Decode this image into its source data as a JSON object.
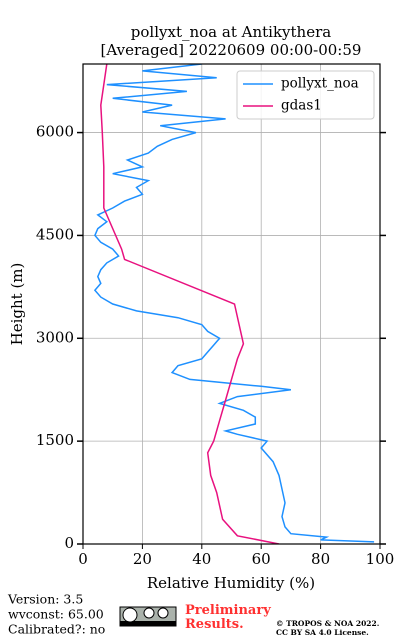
{
  "chart_data": {
    "type": "line",
    "title": "pollyxt_noa at Antikythera",
    "subtitle": "[Averaged] 20220609 00:00-00:59",
    "xlabel": "Relative Humidity (%)",
    "ylabel": "Height (m)",
    "xlim": [
      0,
      100
    ],
    "xticks": [
      0,
      20,
      40,
      60,
      80,
      100
    ],
    "ylim": [
      0,
      7000
    ],
    "yticks": [
      0,
      1500,
      3000,
      4500,
      6000
    ],
    "grid": true,
    "legend": "upper right",
    "series": [
      {
        "name": "pollyxt_noa",
        "color": "#1e90ff",
        "heights": [
          30,
          60,
          100,
          150,
          250,
          400,
          600,
          800,
          1000,
          1200,
          1400,
          1500,
          1600,
          1650,
          1750,
          1850,
          1950,
          2050,
          2150,
          2250,
          2300,
          2400,
          2500,
          2600,
          2700,
          2800,
          2900,
          3000,
          3100,
          3200,
          3300,
          3400,
          3500,
          3600,
          3700,
          3800,
          3900,
          4000,
          4100,
          4200,
          4300,
          4400,
          4500,
          4600,
          4700,
          4800,
          4900,
          5000,
          5100,
          5200,
          5300,
          5400,
          5500,
          5600,
          5700,
          5800,
          5900,
          6000,
          6100,
          6200,
          6300,
          6400,
          6500,
          6600,
          6700,
          6800,
          6900,
          7000
        ],
        "values": [
          98,
          80,
          82,
          70,
          68,
          67,
          68,
          67,
          66,
          64,
          60,
          62,
          52,
          48,
          58,
          58,
          54,
          46,
          52,
          70,
          60,
          36,
          30,
          32,
          40,
          42,
          44,
          46,
          42,
          40,
          32,
          18,
          10,
          6,
          4,
          6,
          5,
          6,
          8,
          12,
          10,
          6,
          4,
          5,
          8,
          5,
          10,
          14,
          20,
          18,
          22,
          10,
          20,
          15,
          22,
          25,
          30,
          38,
          26,
          48,
          20,
          30,
          10,
          35,
          8,
          45,
          20,
          40
        ]
      },
      {
        "name": "gdas1",
        "color": "#e8117f",
        "heights": [
          0,
          120,
          360,
          750,
          1000,
          1330,
          1500,
          1800,
          2100,
          2400,
          2700,
          2920,
          3500,
          4150,
          4300,
          4900,
          5500,
          6000,
          6400,
          6700,
          7000
        ],
        "values": [
          66,
          52,
          47,
          45,
          43,
          42,
          44,
          46,
          48,
          50,
          52,
          54,
          51,
          14,
          13,
          7,
          7,
          6.5,
          6,
          7,
          8
        ]
      }
    ]
  },
  "footer": {
    "version": "Version: 3.5",
    "wvconst": "wvconst:  65.00",
    "calibrated": "Calibrated?: no",
    "status": "Preliminary Results.",
    "copyright": "© TROPOS & NOA 2022.",
    "license": "CC BY SA 4.0 License."
  }
}
